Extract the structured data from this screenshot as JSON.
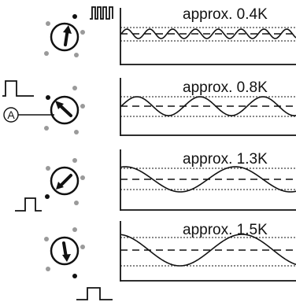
{
  "rows": [
    {
      "label": "approx. 0.4K"
    },
    {
      "label": "approx. 0.8K"
    },
    {
      "label": "approx. 1.3K"
    },
    {
      "label": "approx. 1.5K"
    }
  ],
  "callout": {
    "letter": "A"
  },
  "colors": {
    "ink": "#111111",
    "dot_grey": "#9a9a9a",
    "dot_black": "#111111",
    "background": "#ffffff"
  },
  "icons": [
    "rotary-dial-icon",
    "pulse-signal-icon",
    "waveform-graph"
  ]
}
